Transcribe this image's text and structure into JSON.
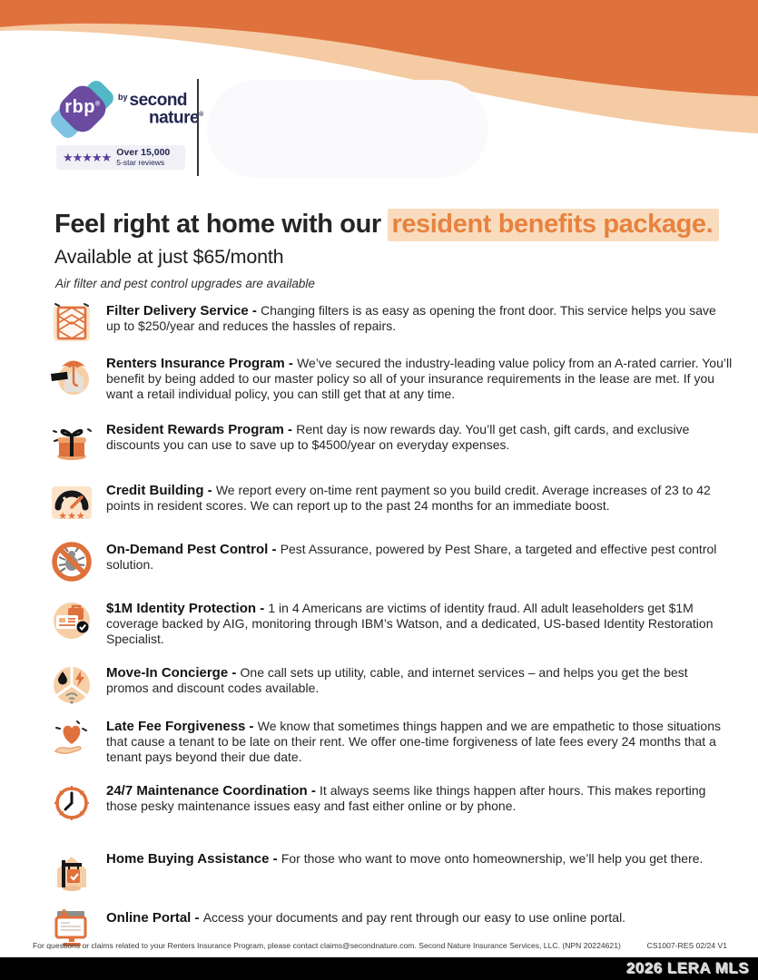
{
  "header": {
    "badge_text": "rbp",
    "badge_mark": "®",
    "by_label": "by",
    "brand_line1": "second",
    "brand_line2": "nature",
    "brand_mark": "®",
    "reviews": {
      "stars": "★★★★★",
      "line1": "Over 15,000",
      "line2": "5-star reviews"
    }
  },
  "title": {
    "prefix": "Feel right at home with our ",
    "highlight": "resident benefits package.",
    "subtitle": "Available at just $65/month",
    "note": "Air filter and pest control upgrades are available"
  },
  "ui": {
    "benefit_separator": " - "
  },
  "benefits": [
    {
      "icon": "air-filter-icon",
      "title": "Filter Delivery Service",
      "description": "Changing filters is as easy as opening the front door. This service helps you save up to $250/year and reduces the hassles of repairs."
    },
    {
      "icon": "umbrella-house-icon",
      "title": "Renters Insurance Program",
      "description": "We’ve secured the industry-leading value policy from an A-rated carrier. You’ll benefit by being added to our master policy so all of your insurance requirements in the lease are met. If you want a retail individual policy, you can still get that at any time."
    },
    {
      "icon": "gift-box-icon",
      "title": "Resident Rewards Program",
      "description": "Rent day is now rewards day. You’ll get cash, gift cards, and exclusive discounts you can use to save up to $4500/year on everyday expenses."
    },
    {
      "icon": "credit-gauge-icon",
      "title": "Credit Building",
      "description": "We report every on-time rent payment so you build credit. Average increases of 23 to 42 points in resident scores. We can report up to the past 24 months for an immediate boost."
    },
    {
      "icon": "no-pests-icon",
      "title": "On-Demand Pest Control",
      "description": "Pest Assurance, powered by Pest Share, a targeted and effective pest control solution."
    },
    {
      "icon": "identity-card-icon",
      "title": "$1M Identity Protection",
      "description": "1 in 4 Americans are victims of identity fraud. All adult leaseholders get $1M coverage backed by AIG, monitoring through IBM’s Watson, and a dedicated, US-based Identity Restoration Specialist."
    },
    {
      "icon": "utilities-wedge-icon",
      "title": "Move-In Concierge",
      "description": "One call sets up utility, cable, and internet services – and helps you get the best promos and discount codes available."
    },
    {
      "icon": "heart-hand-icon",
      "title": "Late Fee Forgiveness",
      "description": "We know that sometimes things happen and we are empathetic to those situations that cause a tenant to be late on their rent. We offer one-time forgiveness of late fees every 24 months that a tenant pays beyond their due date."
    },
    {
      "icon": "clock-icon",
      "title": "24/7 Maintenance Coordination",
      "description": "It always seems like things happen after hours. This makes reporting those pesky maintenance issues easy and fast either online or by phone."
    },
    {
      "icon": "home-sign-icon",
      "title": "Home Buying Assistance",
      "description": "For those who want to move onto homeownership, we’ll help you get there."
    },
    {
      "icon": "online-portal-icon",
      "title": "Online Portal",
      "description": "Access your documents and pay rent through our easy to use online portal."
    }
  ],
  "footer": {
    "left": "For questions or claims related to your Renters Insurance Program, please contact claims@secondnature.com. Second Nature Insurance Services, LLC. (NPN 20224621)",
    "right": "CS1007-RES 02/24 V1"
  },
  "watermark": "2026 LERA MLS",
  "colors": {
    "accent_orange": "#df713c",
    "peach": "#f5cba3",
    "highlight_bg": "#f9dcbe",
    "navy": "#20264f",
    "purple": "#6a4b9f",
    "teal": "#53b8c6",
    "light_blue": "#7ec2e4",
    "bar_black": "#010101"
  }
}
